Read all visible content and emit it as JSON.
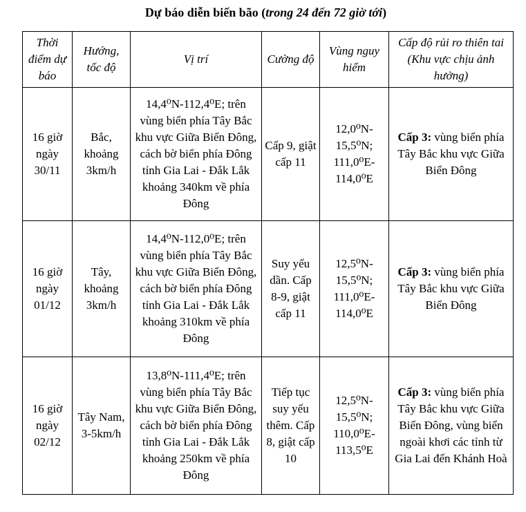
{
  "title": {
    "main": "Dự báo diễn biến bão (",
    "italic": "trong 24 đến 72 giờ tới",
    "end": ")"
  },
  "headers": [
    "Thời điểm dự báo",
    "Hướng, tốc độ",
    "Vị trí",
    "Cường độ",
    "Vùng nguy hiểm",
    "Cấp độ rủi ro thiên tai (Khu vực chịu ảnh hưởng)"
  ],
  "rows": [
    {
      "time": "16 giờ ngày 30/11",
      "direction": "Bắc, khoảng 3km/h",
      "position": "14,4⁰N-112,4⁰E; trên vùng biển phía Tây Bắc khu vực Giữa Biển Đông, cách bờ biển phía Đông tỉnh Gia Lai - Đắk Lắk khoảng 340km về phía Đông",
      "intensity": "Cấp 9, giật cấp 11",
      "danger": "12,0⁰N-\n15,5⁰N;\n111,0⁰E-\n114,0⁰E",
      "risk_level": "Cấp 3:",
      "risk_area": " vùng biển phía Tây Bắc khu vực Giữa Biển Đông"
    },
    {
      "time": "16 giờ ngày 01/12",
      "direction": "Tây, khoảng 3km/h",
      "position": "14,4⁰N-112,0⁰E; trên vùng biển phía Tây Bắc khu vực Giữa Biển Đông, cách bờ biển phía Đông tỉnh Gia Lai - Đắk Lắk khoảng 310km về phía Đông",
      "intensity": "Suy yếu dần. Cấp 8-9, giật cấp 11",
      "danger": "12,5⁰N-\n15,5⁰N;\n111,0⁰E-\n114,0⁰E",
      "risk_level": "Cấp 3:",
      "risk_area": " vùng biển phía Tây Bắc khu vực Giữa Biển Đông"
    },
    {
      "time": "16 giờ ngày 02/12",
      "direction": "Tây Nam, 3-5km/h",
      "position": "13,8⁰N-111,4⁰E; trên vùng biển phía Tây Bắc khu vực Giữa Biển Đông, cách bờ biển phía Đông tỉnh Gia Lai - Đắk Lắk khoảng 250km về phía Đông",
      "intensity": "Tiếp tục suy yếu thêm. Cấp 8, giật cấp 10",
      "danger": "12,5⁰N-\n15,5⁰N;\n110,0⁰E-\n113,5⁰E",
      "risk_level": "Cấp 3:",
      "risk_area": " vùng biển phía Tây Bắc khu vực Giữa Biển Đông, vùng biển ngoài khơi các tỉnh từ Gia Lai đến Khánh Hoà"
    }
  ]
}
